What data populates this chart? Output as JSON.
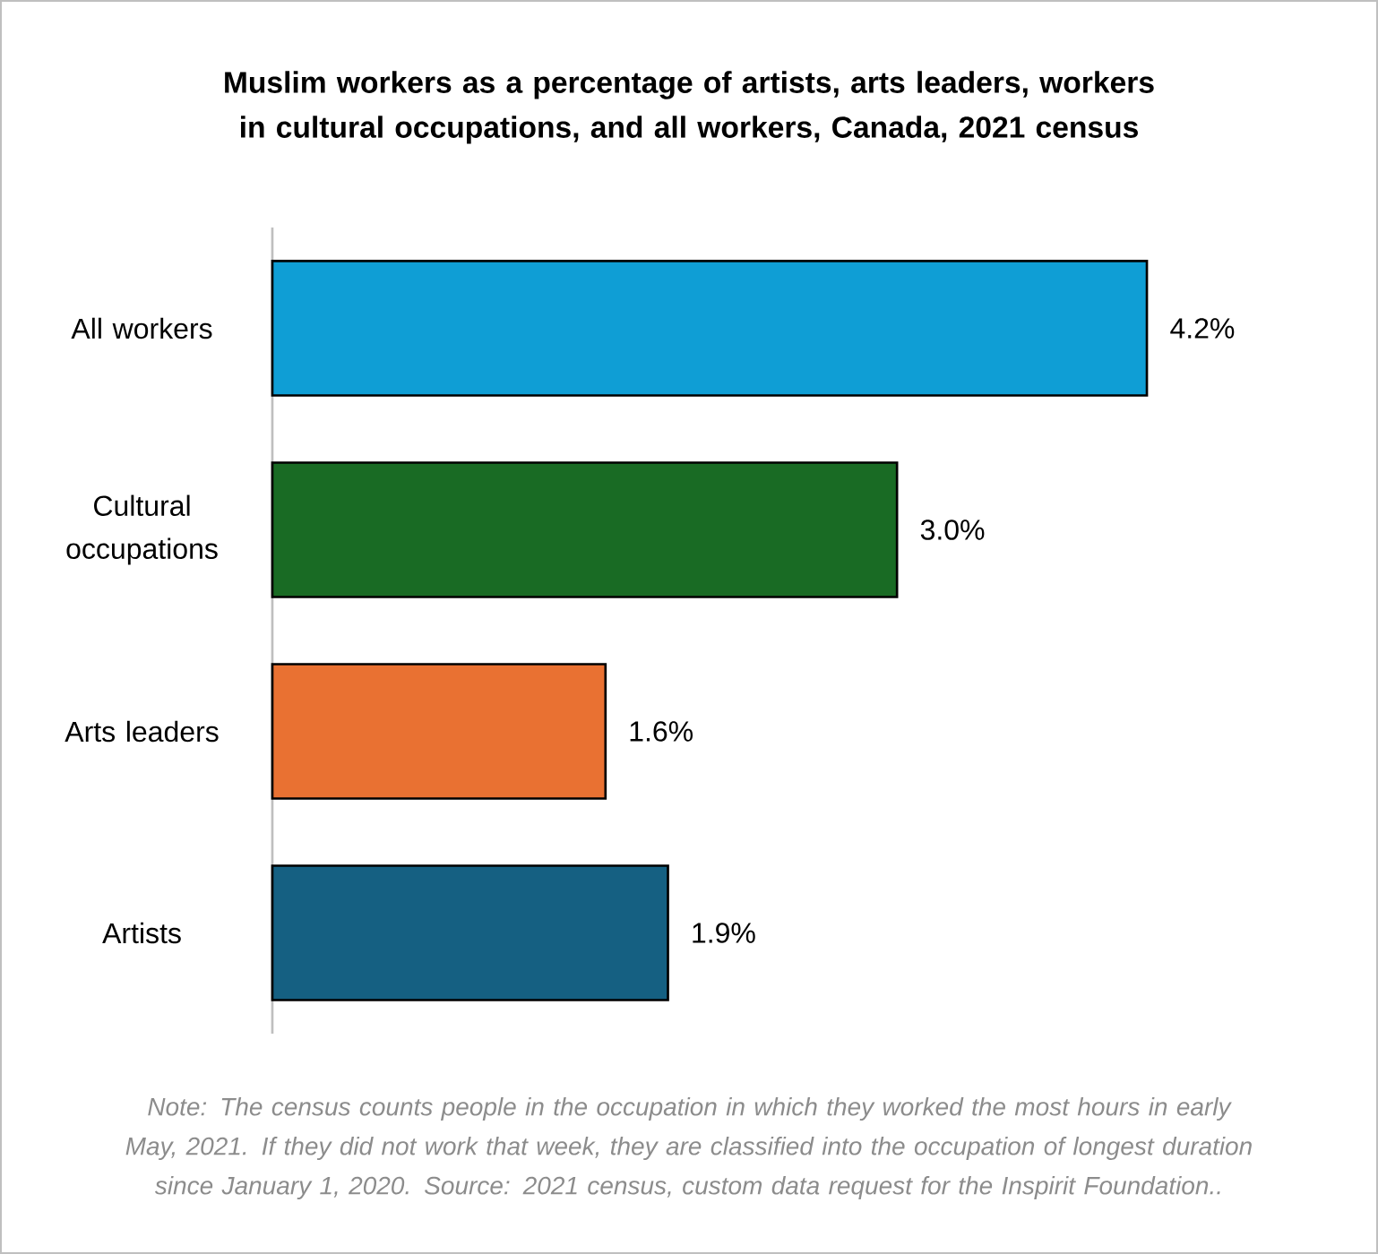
{
  "chart_data": {
    "type": "bar",
    "orientation": "horizontal",
    "title": "Muslim workers as a percentage of artists, arts leaders, workers in cultural occupations, and all workers, Canada, 2021 census",
    "categories": [
      "All workers",
      "Cultural occupations",
      "Arts leaders",
      "Artists"
    ],
    "values": [
      4.2,
      3.0,
      1.6,
      1.9
    ],
    "colors": [
      "#0f9ed5",
      "#196b24",
      "#e97132",
      "#156082"
    ],
    "value_labels": [
      "4.2%",
      "3.0%",
      "1.6%",
      "1.9%"
    ],
    "annotations": [
      "Note: The census counts people in the occupation in which they worked the most hours in early May, 2021. If they did not work that week, they are classified into the occupation of longest duration since January 1, 2020. Source: 2021 census, custom data request for the Inspirit Foundation.."
    ]
  }
}
